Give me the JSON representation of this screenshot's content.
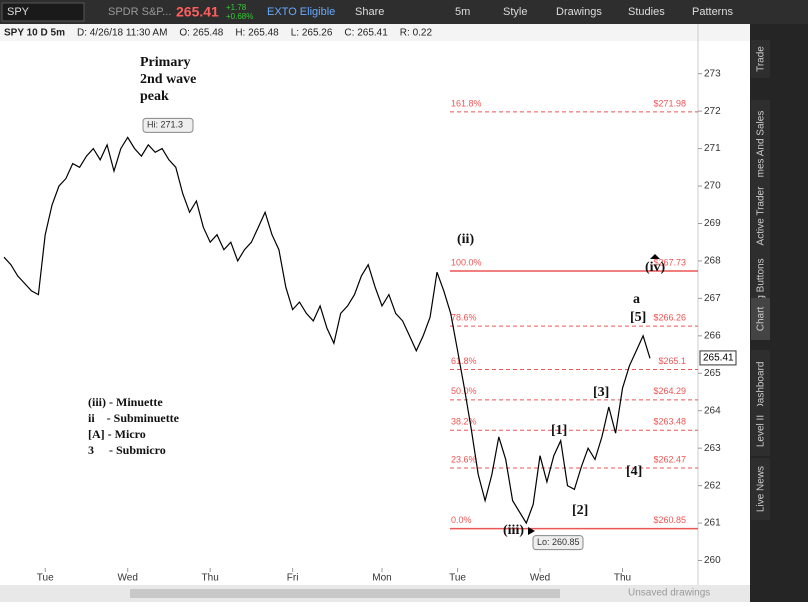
{
  "toolbar": {
    "symbol": "SPY",
    "description": "SPDR S&P...",
    "last": "265.41",
    "change": "+1.78",
    "change_pct": "+0.68%",
    "exto": "EXTO Eligible",
    "share": "Share",
    "interval": "5m",
    "style": "Style",
    "drawings": "Drawings",
    "studies": "Studies",
    "patterns": "Patterns"
  },
  "info_bar": [
    "SPY 10 D 5m",
    "D: 4/26/18 11:30 AM",
    "O: 265.48",
    "H: 265.48",
    "L: 265.26",
    "C: 265.41",
    "R: 0.22"
  ],
  "chart_data": {
    "type": "line",
    "color": "#000000",
    "values": [
      268.1,
      267.9,
      267.6,
      267.4,
      267.2,
      267.1,
      268.7,
      269.5,
      270.0,
      270.2,
      270.6,
      270.5,
      270.8,
      271.0,
      270.7,
      271.1,
      270.4,
      271.0,
      271.3,
      271.0,
      270.8,
      271.1,
      270.9,
      271.0,
      270.7,
      270.5,
      269.8,
      269.3,
      269.6,
      268.9,
      268.5,
      268.7,
      268.3,
      268.5,
      268.0,
      268.3,
      268.5,
      268.9,
      269.3,
      268.7,
      268.3,
      267.3,
      266.7,
      266.9,
      266.6,
      266.4,
      266.8,
      266.2,
      265.8,
      266.6,
      266.8,
      267.1,
      267.6,
      267.9,
      267.3,
      266.8,
      267.1,
      266.6,
      266.4,
      266.0,
      265.6,
      266.0,
      266.5,
      267.7,
      267.2,
      266.6,
      265.6,
      264.6,
      263.5,
      262.3,
      261.6,
      262.3,
      263.3,
      262.7,
      261.6,
      261.3,
      261.0,
      261.5,
      262.8,
      262.1,
      262.8,
      263.2,
      262.0,
      261.9,
      262.5,
      263.0,
      262.7,
      263.3,
      264.1,
      263.4,
      264.6,
      265.2,
      265.6,
      266.0,
      265.4
    ],
    "ylim": [
      259.8,
      273.9
    ],
    "yticks": [
      260,
      261,
      262,
      263,
      264,
      265,
      266,
      267,
      268,
      269,
      270,
      271,
      272,
      273
    ],
    "xticks": [
      {
        "value": 6,
        "label": "Tue"
      },
      {
        "value": 18,
        "label": "Wed"
      },
      {
        "value": 30,
        "label": "Thu"
      },
      {
        "value": 42,
        "label": "Fri"
      },
      {
        "value": 55,
        "label": "Mon"
      },
      {
        "value": 66,
        "label": "Tue"
      },
      {
        "value": 78,
        "label": "Wed"
      },
      {
        "value": 90,
        "label": "Thu"
      }
    ],
    "last_price": 265.41,
    "fib_levels": [
      {
        "label": "161.8%",
        "price": 271.98,
        "price_label": "$271.98"
      },
      {
        "label": "100.0%",
        "price": 267.73,
        "price_label": "$267.73"
      },
      {
        "label": "78.6%",
        "price": 266.26,
        "price_label": "$266.26"
      },
      {
        "label": "61.8%",
        "price": 265.1,
        "price_label": "$265.1"
      },
      {
        "label": "50.0%",
        "price": 264.29,
        "price_label": "$264.29"
      },
      {
        "label": "38.2%",
        "price": 263.48,
        "price_label": "$263.48"
      },
      {
        "label": "23.6%",
        "price": 262.47,
        "price_label": "$262.47"
      },
      {
        "label": "0.0%",
        "price": 260.85,
        "price_label": "$260.85"
      }
    ],
    "hi": {
      "label": "Hi: 271.3",
      "value": 271.3
    },
    "lo": {
      "label": "Lo: 260.85",
      "value": 260.85
    },
    "title_lines": [
      "Primary",
      "2nd wave",
      "peak"
    ],
    "wave_labels": [
      "(ii)",
      "(iv)",
      "a",
      "[5]",
      "[3]",
      "[1]",
      "[4]",
      "[2]",
      "(iii)"
    ],
    "legend_lines": [
      "(iii) - Minuette",
      "ii    - Subminuette",
      "[A] - Micro",
      "3     - Submicro"
    ]
  },
  "side_tabs": [
    "Trade",
    "Times And Sales",
    "Active Trader",
    "Big Buttons",
    "Chart",
    "Dashboard",
    "Level II",
    "Live News"
  ],
  "footer": "Unsaved drawings"
}
